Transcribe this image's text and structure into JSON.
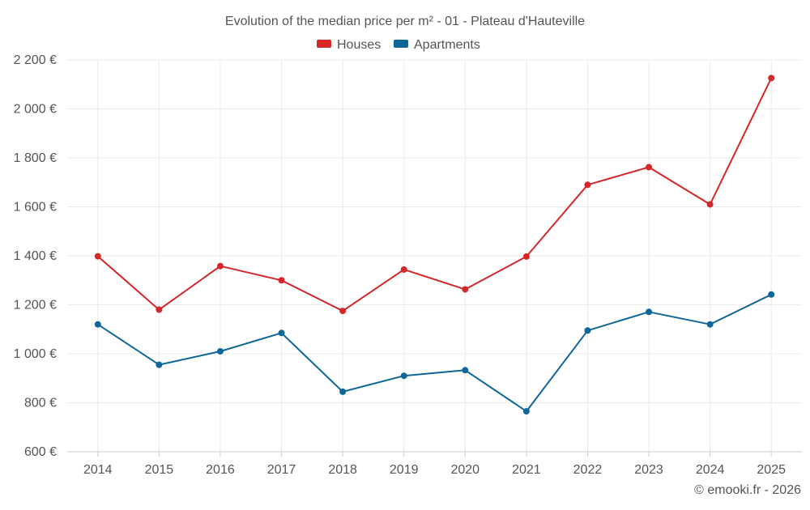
{
  "chart_data": {
    "type": "line",
    "title": "Evolution of the median price per m² - 01 - Plateau d'Hauteville",
    "xlabel": "",
    "ylabel": "",
    "categories": [
      "2014",
      "2015",
      "2016",
      "2017",
      "2018",
      "2019",
      "2020",
      "2021",
      "2022",
      "2023",
      "2024",
      "2025"
    ],
    "series": [
      {
        "name": "Houses",
        "color": "#d62728",
        "values": [
          1398,
          1180,
          1358,
          1300,
          1175,
          1344,
          1263,
          1397,
          1690,
          1762,
          1610,
          2126
        ]
      },
      {
        "name": "Apartments",
        "color": "#0e6699",
        "values": [
          1120,
          955,
          1010,
          1085,
          845,
          910,
          933,
          765,
          1095,
          1171,
          1120,
          1242
        ]
      }
    ],
    "ylim": [
      600,
      2200
    ],
    "yticks": [
      600,
      800,
      1000,
      1200,
      1400,
      1600,
      1800,
      2000,
      2200
    ],
    "ytick_labels": [
      "600 €",
      "800 €",
      "1 000 €",
      "1 200 €",
      "1 400 €",
      "1 600 €",
      "1 800 €",
      "2 000 €",
      "2 200 €"
    ],
    "grid": true,
    "legend_position": "top-center"
  },
  "footer": {
    "credit": "© emooki.fr - 2026"
  }
}
